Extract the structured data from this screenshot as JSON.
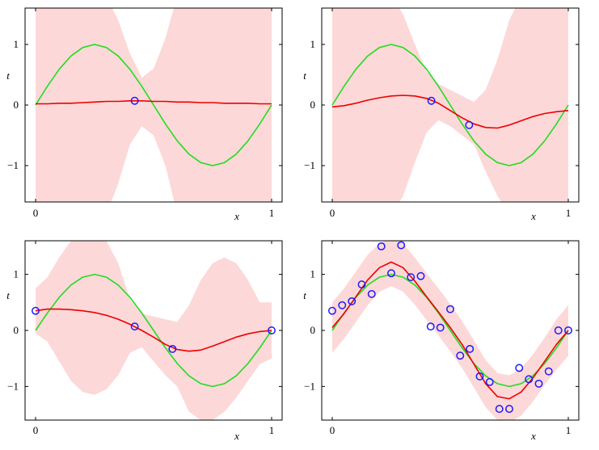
{
  "colors": {
    "band": "#fdd8d8",
    "mean": "#ee0000",
    "truth": "#22dd22",
    "points": "#1a1aff",
    "frame": "#000000"
  },
  "chart_data": [
    {
      "type": "line",
      "xlabel": "x",
      "ylabel": "t",
      "xlim": [
        0,
        1
      ],
      "ylim": [
        -1.6,
        1.6
      ],
      "xticks": [
        0,
        1
      ],
      "yticks": [
        -1,
        0,
        1
      ],
      "xtick_labels": [
        "0",
        "1"
      ],
      "ytick_labels": [
        "−1",
        "0",
        "1"
      ],
      "grid": false,
      "points": [
        {
          "x": 0.42,
          "y": 0.07
        }
      ],
      "x": [
        0,
        0.05,
        0.1,
        0.15,
        0.2,
        0.25,
        0.3,
        0.35,
        0.4,
        0.45,
        0.5,
        0.55,
        0.6,
        0.65,
        0.7,
        0.75,
        0.8,
        0.85,
        0.9,
        0.95,
        1
      ],
      "series": [
        {
          "role": "mean",
          "values": [
            0.02,
            0.02,
            0.03,
            0.03,
            0.04,
            0.05,
            0.06,
            0.06,
            0.07,
            0.07,
            0.06,
            0.06,
            0.05,
            0.05,
            0.04,
            0.04,
            0.03,
            0.03,
            0.03,
            0.02,
            0.02
          ]
        },
        {
          "role": "truth",
          "values": [
            0,
            0.31,
            0.59,
            0.81,
            0.95,
            1,
            0.95,
            0.81,
            0.59,
            0.31,
            0,
            -0.31,
            -0.59,
            -0.81,
            -0.95,
            -1,
            -0.95,
            -0.81,
            -0.59,
            -0.31,
            0
          ]
        },
        {
          "role": "band_upper",
          "values": [
            1.8,
            1.8,
            1.8,
            1.8,
            1.8,
            1.8,
            1.8,
            1.4,
            0.85,
            0.45,
            0.6,
            1.1,
            1.8,
            1.8,
            1.8,
            1.8,
            1.8,
            1.8,
            1.8,
            1.8,
            1.8
          ]
        },
        {
          "role": "band_lower",
          "values": [
            -1.8,
            -1.8,
            -1.8,
            -1.8,
            -1.8,
            -1.8,
            -1.8,
            -1.3,
            -0.65,
            -0.35,
            -0.5,
            -1.0,
            -1.8,
            -1.8,
            -1.8,
            -1.8,
            -1.8,
            -1.8,
            -1.8,
            -1.8,
            -1.8
          ]
        }
      ]
    },
    {
      "type": "line",
      "xlabel": "x",
      "ylabel": "t",
      "xlim": [
        0,
        1
      ],
      "ylim": [
        -1.6,
        1.6
      ],
      "xticks": [
        0,
        1
      ],
      "yticks": [
        -1,
        0,
        1
      ],
      "xtick_labels": [
        "0",
        "1"
      ],
      "ytick_labels": [
        "−1",
        "0",
        "1"
      ],
      "grid": false,
      "points": [
        {
          "x": 0.42,
          "y": 0.07
        },
        {
          "x": 0.58,
          "y": -0.33
        }
      ],
      "x": [
        0,
        0.05,
        0.1,
        0.15,
        0.2,
        0.25,
        0.3,
        0.35,
        0.4,
        0.45,
        0.5,
        0.55,
        0.6,
        0.65,
        0.7,
        0.75,
        0.8,
        0.85,
        0.9,
        0.95,
        1
      ],
      "series": [
        {
          "role": "mean",
          "values": [
            -0.03,
            -0.01,
            0.03,
            0.08,
            0.12,
            0.15,
            0.16,
            0.15,
            0.11,
            0.03,
            -0.09,
            -0.21,
            -0.31,
            -0.37,
            -0.38,
            -0.33,
            -0.26,
            -0.19,
            -0.14,
            -0.11,
            -0.09
          ]
        },
        {
          "role": "truth",
          "values": [
            0,
            0.31,
            0.59,
            0.81,
            0.95,
            1,
            0.95,
            0.81,
            0.59,
            0.31,
            0,
            -0.31,
            -0.59,
            -0.81,
            -0.95,
            -1,
            -0.95,
            -0.81,
            -0.59,
            -0.31,
            0
          ]
        },
        {
          "role": "band_upper",
          "values": [
            1.8,
            1.8,
            1.8,
            1.8,
            1.8,
            1.8,
            1.5,
            1.0,
            0.55,
            0.35,
            0.25,
            0.15,
            0.05,
            0.25,
            0.75,
            1.4,
            1.8,
            1.8,
            1.8,
            1.8,
            1.8
          ]
        },
        {
          "role": "band_lower",
          "values": [
            -1.8,
            -1.8,
            -1.8,
            -1.8,
            -1.8,
            -1.8,
            -1.5,
            -0.95,
            -0.45,
            -0.25,
            -0.35,
            -0.5,
            -0.65,
            -1.1,
            -1.5,
            -1.8,
            -1.8,
            -1.8,
            -1.8,
            -1.8,
            -1.8
          ]
        }
      ]
    },
    {
      "type": "line",
      "xlabel": "x",
      "ylabel": "t",
      "xlim": [
        0,
        1
      ],
      "ylim": [
        -1.6,
        1.6
      ],
      "xticks": [
        0,
        1
      ],
      "yticks": [
        -1,
        0,
        1
      ],
      "xtick_labels": [
        "0",
        "1"
      ],
      "ytick_labels": [
        "−1",
        "0",
        "1"
      ],
      "grid": false,
      "points": [
        {
          "x": 0,
          "y": 0.35
        },
        {
          "x": 0.42,
          "y": 0.07
        },
        {
          "x": 0.58,
          "y": -0.33
        },
        {
          "x": 1,
          "y": 0
        }
      ],
      "x": [
        0,
        0.05,
        0.1,
        0.15,
        0.2,
        0.25,
        0.3,
        0.35,
        0.4,
        0.45,
        0.5,
        0.55,
        0.6,
        0.65,
        0.7,
        0.75,
        0.8,
        0.85,
        0.9,
        0.95,
        1
      ],
      "series": [
        {
          "role": "mean",
          "values": [
            0.35,
            0.38,
            0.38,
            0.37,
            0.35,
            0.32,
            0.27,
            0.2,
            0.11,
            0.0,
            -0.12,
            -0.25,
            -0.34,
            -0.37,
            -0.35,
            -0.28,
            -0.2,
            -0.12,
            -0.06,
            -0.02,
            0
          ]
        },
        {
          "role": "truth",
          "values": [
            0,
            0.31,
            0.59,
            0.81,
            0.95,
            1,
            0.95,
            0.81,
            0.59,
            0.31,
            0,
            -0.31,
            -0.59,
            -0.81,
            -0.95,
            -1,
            -0.95,
            -0.81,
            -0.59,
            -0.31,
            0
          ]
        },
        {
          "role": "band_upper",
          "values": [
            0.75,
            0.95,
            1.3,
            1.6,
            1.8,
            1.8,
            1.6,
            1.2,
            0.55,
            0.3,
            0.25,
            0.2,
            0.15,
            0.45,
            0.9,
            1.2,
            1.3,
            1.2,
            0.9,
            0.5,
            0.5
          ]
        },
        {
          "role": "band_lower",
          "values": [
            -0.05,
            -0.2,
            -0.55,
            -0.9,
            -1.1,
            -1.15,
            -1.05,
            -0.8,
            -0.4,
            -0.3,
            -0.55,
            -0.8,
            -1.0,
            -1.45,
            -1.6,
            -1.6,
            -1.45,
            -1.2,
            -0.9,
            -0.6,
            -0.5
          ]
        }
      ]
    },
    {
      "type": "line",
      "xlabel": "x",
      "ylabel": "t",
      "xlim": [
        0,
        1
      ],
      "ylim": [
        -1.6,
        1.6
      ],
      "xticks": [
        0,
        1
      ],
      "yticks": [
        -1,
        0,
        1
      ],
      "xtick_labels": [
        "0",
        "1"
      ],
      "ytick_labels": [
        "−1",
        "0",
        "1"
      ],
      "grid": false,
      "points": [
        {
          "x": 0,
          "y": 0.35
        },
        {
          "x": 0.042,
          "y": 0.45
        },
        {
          "x": 0.083,
          "y": 0.52
        },
        {
          "x": 0.125,
          "y": 0.82
        },
        {
          "x": 0.167,
          "y": 0.65
        },
        {
          "x": 0.208,
          "y": 1.5
        },
        {
          "x": 0.25,
          "y": 1.02
        },
        {
          "x": 0.292,
          "y": 1.52
        },
        {
          "x": 0.333,
          "y": 0.95
        },
        {
          "x": 0.375,
          "y": 0.97
        },
        {
          "x": 0.417,
          "y": 0.07
        },
        {
          "x": 0.458,
          "y": 0.05
        },
        {
          "x": 0.5,
          "y": 0.38
        },
        {
          "x": 0.542,
          "y": -0.45
        },
        {
          "x": 0.583,
          "y": -0.33
        },
        {
          "x": 0.625,
          "y": -0.82
        },
        {
          "x": 0.667,
          "y": -0.92
        },
        {
          "x": 0.708,
          "y": -1.4
        },
        {
          "x": 0.75,
          "y": -1.4
        },
        {
          "x": 0.792,
          "y": -0.67
        },
        {
          "x": 0.833,
          "y": -0.87
        },
        {
          "x": 0.875,
          "y": -0.95
        },
        {
          "x": 0.917,
          "y": -0.73
        },
        {
          "x": 0.958,
          "y": 0.0
        },
        {
          "x": 1,
          "y": 0.0
        }
      ],
      "x": [
        0,
        0.05,
        0.1,
        0.15,
        0.2,
        0.25,
        0.3,
        0.35,
        0.4,
        0.45,
        0.5,
        0.55,
        0.6,
        0.65,
        0.7,
        0.75,
        0.8,
        0.85,
        0.9,
        0.95,
        1
      ],
      "series": [
        {
          "role": "mean",
          "values": [
            0.05,
            0.3,
            0.6,
            0.9,
            1.12,
            1.22,
            1.12,
            0.88,
            0.6,
            0.33,
            0.05,
            -0.25,
            -0.6,
            -0.95,
            -1.18,
            -1.22,
            -1.1,
            -0.85,
            -0.55,
            -0.25,
            0
          ]
        },
        {
          "role": "truth",
          "values": [
            0,
            0.31,
            0.59,
            0.81,
            0.95,
            1,
            0.95,
            0.81,
            0.59,
            0.31,
            0,
            -0.31,
            -0.59,
            -0.81,
            -0.95,
            -1,
            -0.95,
            -0.81,
            -0.59,
            -0.31,
            0
          ]
        },
        {
          "role": "band_upper",
          "values": [
            0.5,
            0.75,
            1.05,
            1.35,
            1.55,
            1.65,
            1.55,
            1.3,
            1.02,
            0.75,
            0.47,
            0.17,
            -0.18,
            -0.53,
            -0.76,
            -0.8,
            -0.68,
            -0.43,
            -0.13,
            0.2,
            0.45
          ]
        },
        {
          "role": "band_lower",
          "values": [
            -0.4,
            -0.15,
            0.15,
            0.45,
            0.69,
            0.79,
            0.69,
            0.46,
            0.18,
            -0.09,
            -0.37,
            -0.67,
            -1.02,
            -1.37,
            -1.6,
            -1.64,
            -1.52,
            -1.27,
            -0.97,
            -0.7,
            -0.45
          ]
        }
      ]
    }
  ]
}
